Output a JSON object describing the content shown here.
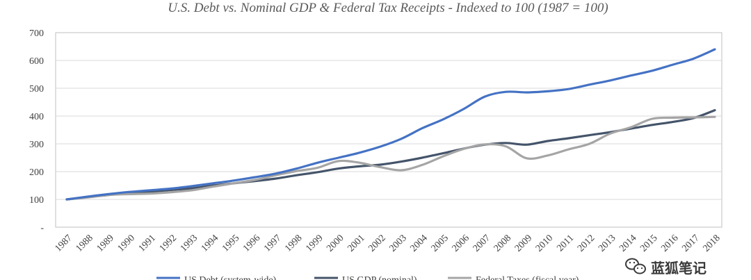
{
  "chart_data": {
    "type": "line",
    "title": "U.S. Debt vs. Nominal GDP & Federal Tax Receipts - Indexed to 100 (1987 = 100)",
    "xlabel": "",
    "ylabel": "",
    "ylim": [
      0,
      700
    ],
    "y_ticks": [
      "-",
      "100",
      "200",
      "300",
      "400",
      "500",
      "600",
      "700"
    ],
    "grid": true,
    "legend_position": "bottom",
    "categories": [
      "1987",
      "1988",
      "1989",
      "1990",
      "1991",
      "1992",
      "1993",
      "1994",
      "1995",
      "1996",
      "1997",
      "1998",
      "1999",
      "2000",
      "2001",
      "2002",
      "2003",
      "2004",
      "2005",
      "2006",
      "2007",
      "2008",
      "2009",
      "2010",
      "2011",
      "2012",
      "2013",
      "2014",
      "2015",
      "2016",
      "2017",
      "2018"
    ],
    "series": [
      {
        "name": "US Debt (system-wide)",
        "color": "#4472c4",
        "values": [
          100,
          110,
          119,
          127,
          133,
          139,
          148,
          158,
          168,
          180,
          193,
          211,
          232,
          250,
          268,
          290,
          318,
          356,
          388,
          426,
          470,
          487,
          485,
          489,
          497,
          513,
          528,
          546,
          563,
          585,
          607,
          640
        ]
      },
      {
        "name": "US GDP (nominal)",
        "color": "#44546a",
        "values": [
          100,
          108,
          116,
          123,
          128,
          134,
          140,
          150,
          158,
          166,
          175,
          187,
          198,
          211,
          219,
          225,
          236,
          250,
          266,
          283,
          297,
          303,
          297,
          310,
          320,
          331,
          342,
          355,
          368,
          379,
          393,
          421
        ]
      },
      {
        "name": "Federal Taxes (fiscal year)",
        "color": "#a5a5a5",
        "values": [
          100,
          107,
          116,
          119,
          121,
          126,
          133,
          146,
          158,
          170,
          187,
          202,
          214,
          238,
          232,
          216,
          205,
          224,
          255,
          282,
          298,
          291,
          248,
          258,
          280,
          300,
          337,
          360,
          390,
          394,
          395,
          397
        ]
      }
    ]
  },
  "watermark": {
    "text": "蓝狐笔记",
    "icon": "wechat-icon"
  }
}
